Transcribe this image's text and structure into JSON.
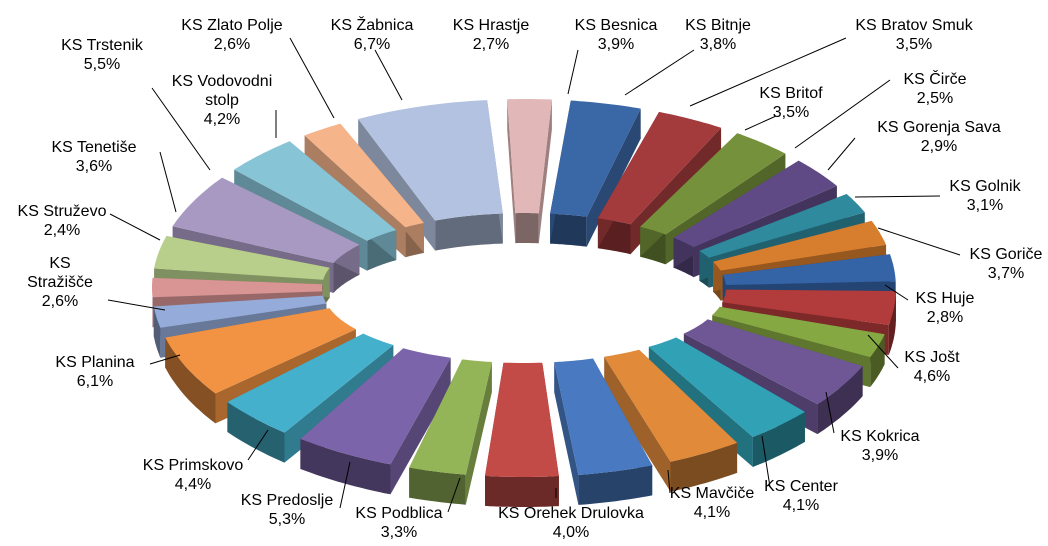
{
  "chart_data": {
    "type": "pie",
    "title": "",
    "style": "3d-exploded-doughnut",
    "slices": [
      {
        "label": "KS Besnica",
        "value": 3.9,
        "display": "3,9%",
        "color": "#3a67a6"
      },
      {
        "label": "KS Bitnje",
        "value": 3.8,
        "display": "3,8%",
        "color": "#a33a3c"
      },
      {
        "label": "KS Bratov Smuk",
        "value": 3.5,
        "display": "3,5%",
        "color": "#76913b"
      },
      {
        "label": "KS Britof",
        "value": 3.5,
        "display": "3,5%",
        "color": "#5f4a85"
      },
      {
        "label": "KS Čirče",
        "value": 2.5,
        "display": "2,5%",
        "color": "#2f8a9e"
      },
      {
        "label": "KS Gorenja Sava",
        "value": 2.9,
        "display": "2,9%",
        "color": "#d77d2e"
      },
      {
        "label": "KS Golnik",
        "value": 3.1,
        "display": "3,1%",
        "color": "#3463a6"
      },
      {
        "label": "KS Goriče",
        "value": 3.7,
        "display": "3,7%",
        "color": "#b23b3b"
      },
      {
        "label": "KS Huje",
        "value": 2.8,
        "display": "2,8%",
        "color": "#86a842"
      },
      {
        "label": "KS Jošt",
        "value": 4.6,
        "display": "4,6%",
        "color": "#6f5796"
      },
      {
        "label": "KS Kokrica",
        "value": 3.9,
        "display": "3,9%",
        "color": "#31a1b5"
      },
      {
        "label": "KS Center",
        "value": 4.1,
        "display": "4,1%",
        "color": "#e08a3a"
      },
      {
        "label": "KS Mavčiče",
        "value": 4.1,
        "display": "4,1%",
        "color": "#4979c0"
      },
      {
        "label": "KS Orehek Drulovka",
        "value": 4.0,
        "display": "4,0%",
        "color": "#c24a47"
      },
      {
        "label": "KS Podblica",
        "value": 3.3,
        "display": "3,3%",
        "color": "#93b457"
      },
      {
        "label": "KS Predoslje",
        "value": 5.3,
        "display": "5,3%",
        "color": "#7b64a9"
      },
      {
        "label": "KS Primskovo",
        "value": 4.4,
        "display": "4,4%",
        "color": "#45b0cb"
      },
      {
        "label": "KS Planina",
        "value": 6.1,
        "display": "6,1%",
        "color": "#f19342"
      },
      {
        "label": "KS Stražišče",
        "value": 2.6,
        "display": "2,6%",
        "color": "#95abd9"
      },
      {
        "label": "KS Struževo",
        "value": 2.4,
        "display": "2,4%",
        "color": "#d99594"
      },
      {
        "label": "KS Tenetiše",
        "value": 3.6,
        "display": "3,6%",
        "color": "#b7cf8a"
      },
      {
        "label": "KS Trstenik",
        "value": 5.5,
        "display": "5,5%",
        "color": "#a899c3"
      },
      {
        "label": "KS Vodovodni stolp",
        "value": 4.2,
        "display": "4,2%",
        "color": "#87c4d6"
      },
      {
        "label": "KS Zlato Polje",
        "value": 2.6,
        "display": "2,6%",
        "color": "#f6b48a"
      },
      {
        "label": "KS Žabnica",
        "value": 6.7,
        "display": "6,7%",
        "color": "#b3c2e0"
      },
      {
        "label": "KS Hrastje",
        "value": 2.7,
        "display": "2,7%",
        "color": "#e2b7b7"
      }
    ]
  }
}
